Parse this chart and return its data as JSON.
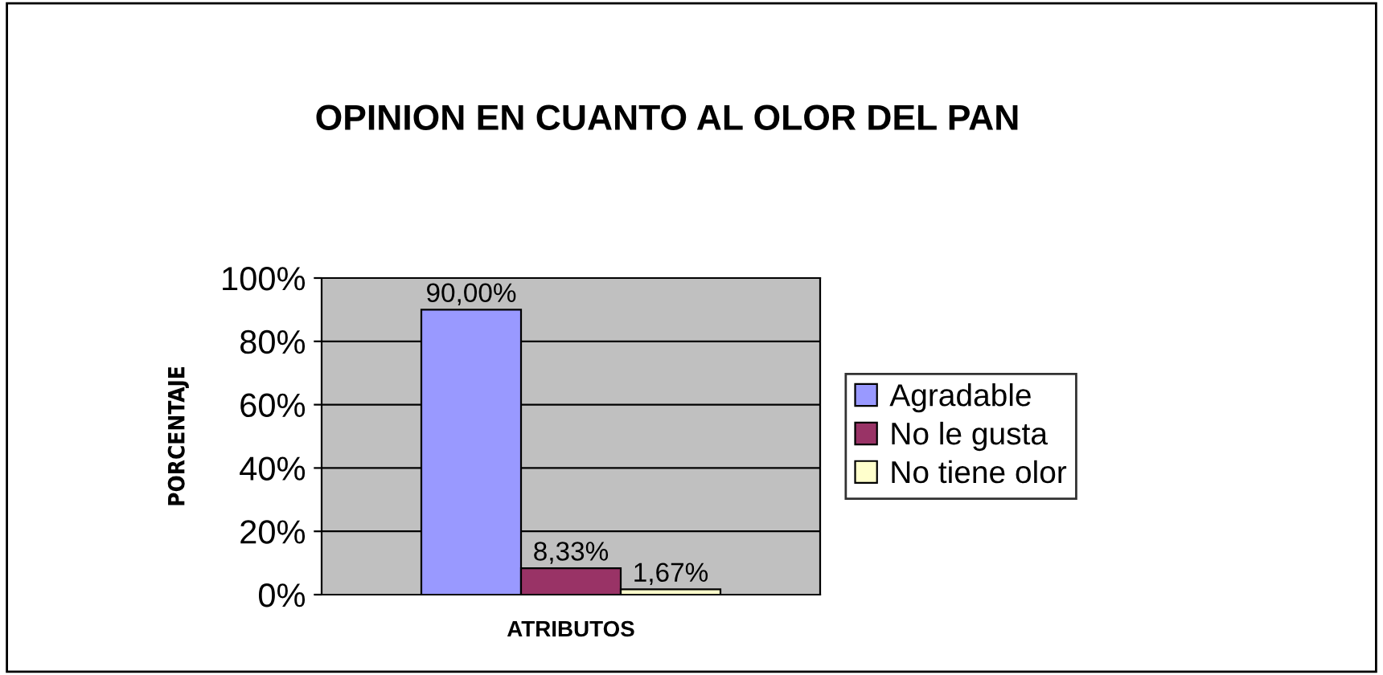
{
  "chart_data": {
    "type": "bar",
    "title": "OPINION EN CUANTO AL OLOR DEL PAN",
    "xlabel": "ATRIBUTOS",
    "ylabel": "PORCENTAJE",
    "categories": [
      null
    ],
    "series": [
      {
        "name": "Agradable",
        "color": "#9999ff",
        "values": [
          90.0
        ],
        "value_labels": [
          "90,00%"
        ]
      },
      {
        "name": "No le gusta",
        "color": "#993366",
        "values": [
          8.33
        ],
        "value_labels": [
          "8,33%"
        ]
      },
      {
        "name": "No tiene olor",
        "color": "#ffffcc",
        "values": [
          1.67
        ],
        "value_labels": [
          "1,67%"
        ]
      }
    ],
    "ylim": [
      0,
      100
    ],
    "yticks": [
      {
        "value": 0,
        "label": "0%"
      },
      {
        "value": 20,
        "label": "20%"
      },
      {
        "value": 40,
        "label": "40%"
      },
      {
        "value": 60,
        "label": "60%"
      },
      {
        "value": 80,
        "label": "80%"
      },
      {
        "value": 100,
        "label": "100%"
      }
    ],
    "grid": "y",
    "legend": "right"
  }
}
